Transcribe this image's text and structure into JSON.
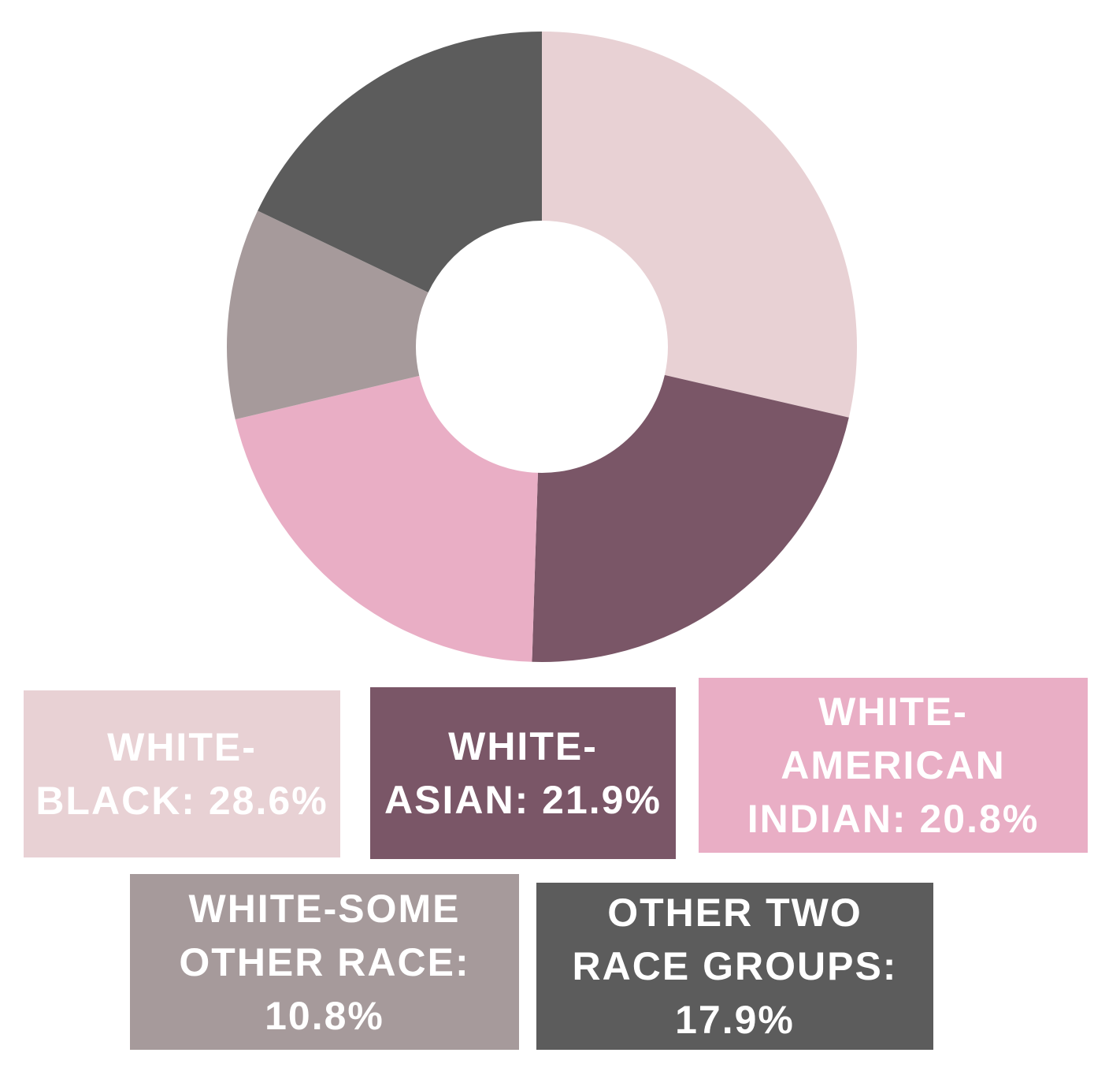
{
  "chart_data": {
    "type": "donut",
    "categories": [
      "WHITE-BLACK:",
      "WHITE-ASIAN:",
      "WHITE-AMERICAN INDIAN:",
      "WHITE-SOME OTHER RACE:",
      "OTHER TWO RACE GROUPS:"
    ],
    "values": [
      28.6,
      21.9,
      20.8,
      10.8,
      17.9
    ],
    "value_labels": [
      "28.6%",
      "21.9%",
      "20.8%",
      "10.8%",
      "17.9%"
    ],
    "colors": [
      "#e8d1d4",
      "#7a5667",
      "#e9aec5",
      "#a69a9b",
      "#5c5c5c"
    ]
  }
}
